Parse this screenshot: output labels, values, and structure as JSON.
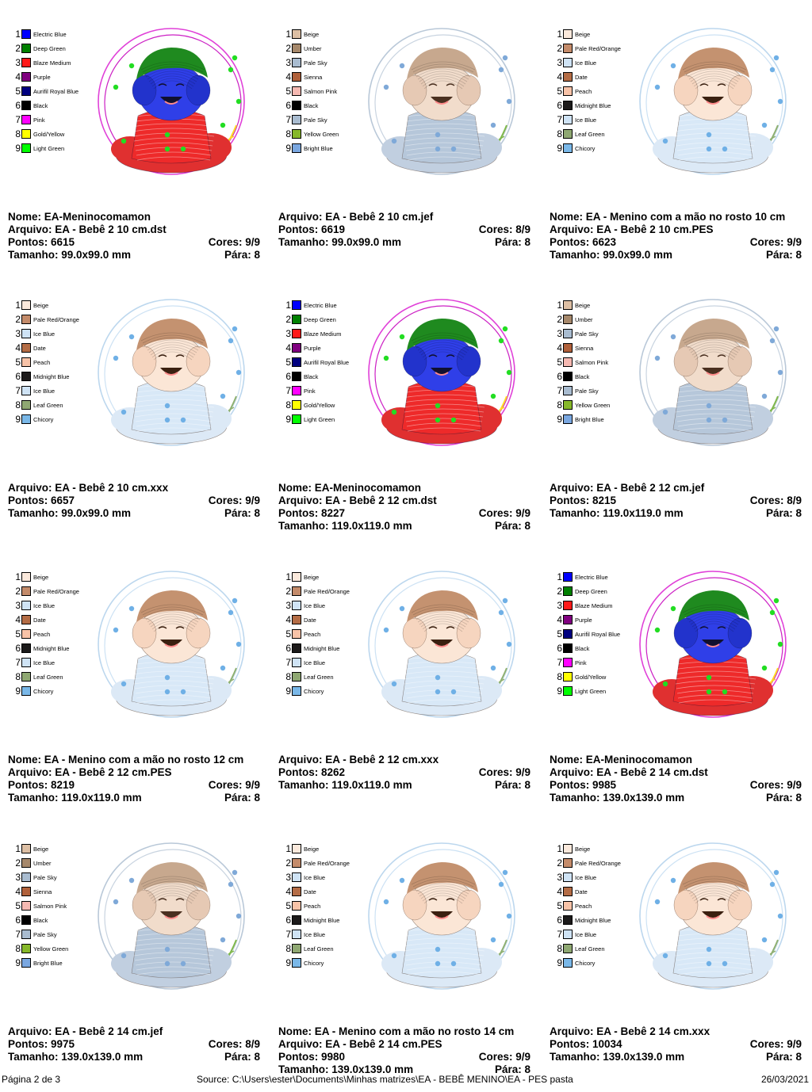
{
  "palettes": {
    "vivid": [
      {
        "name": "Electric Blue",
        "color": "#0000ff"
      },
      {
        "name": "Deep Green",
        "color": "#008000"
      },
      {
        "name": "Blaze Medium",
        "color": "#ff1a1a"
      },
      {
        "name": "Purple",
        "color": "#800080"
      },
      {
        "name": "Aurifil Royal Blue",
        "color": "#000080"
      },
      {
        "name": "Black",
        "color": "#000000"
      },
      {
        "name": "Pink",
        "color": "#ff00ff"
      },
      {
        "name": "Gold/Yellow",
        "color": "#ffff00"
      },
      {
        "name": "Light Green",
        "color": "#00ff00"
      }
    ],
    "jef": [
      {
        "name": "Beige",
        "color": "#ddbfa4"
      },
      {
        "name": "Umber",
        "color": "#a6886b"
      },
      {
        "name": "Pale Sky",
        "color": "#a9bcd0"
      },
      {
        "name": "Sienna",
        "color": "#b0603a"
      },
      {
        "name": "Salmon Pink",
        "color": "#f6b9b2"
      },
      {
        "name": "Black",
        "color": "#000000"
      },
      {
        "name": "Pale Sky",
        "color": "#a9bcd0"
      },
      {
        "name": "Yellow Green",
        "color": "#86b82a"
      },
      {
        "name": "Bright Blue",
        "color": "#7aa7e0"
      }
    ],
    "soft": [
      {
        "name": "Beige",
        "color": "#fbe9dc"
      },
      {
        "name": "Pale Red/Orange",
        "color": "#c48b6a"
      },
      {
        "name": "Ice Blue",
        "color": "#cfe3f5"
      },
      {
        "name": "Date",
        "color": "#b46c45"
      },
      {
        "name": "Peach",
        "color": "#f8c3a8"
      },
      {
        "name": "Midnight Blue",
        "color": "#1c1a1a"
      },
      {
        "name": "Ice Blue",
        "color": "#cfe3f5"
      },
      {
        "name": "Leaf Green",
        "color": "#8fa872"
      },
      {
        "name": "Chicory",
        "color": "#7ab8e8"
      }
    ]
  },
  "cards": [
    {
      "style": "vivid",
      "lines": [
        {
          "label": "Nome: EA-Meninocomamon"
        },
        {
          "label": "Arquivo: EA - Bebê 2 10 cm.dst"
        },
        {
          "label": "Pontos: 6615",
          "right": "Cores: 9/9"
        },
        {
          "label": "Tamanho: 99.0x99.0 mm",
          "right": "Pára: 8"
        }
      ]
    },
    {
      "style": "jef",
      "lines": [
        {
          "label": "Arquivo: EA - Bebê 2 10 cm.jef"
        },
        {
          "label": "Pontos: 6619",
          "right": "Cores: 8/9"
        },
        {
          "label": "Tamanho: 99.0x99.0 mm",
          "right": "Pára: 8"
        }
      ]
    },
    {
      "style": "soft",
      "lines": [
        {
          "label": "Nome: EA - Menino com a mão no rosto 10 cm"
        },
        {
          "label": "Arquivo: EA - Bebê 2 10 cm.PES"
        },
        {
          "label": "Pontos: 6623",
          "right": "Cores: 9/9"
        },
        {
          "label": "Tamanho: 99.0x99.0 mm",
          "right": "Pára: 8"
        }
      ]
    },
    {
      "style": "soft",
      "lines": [
        {
          "label": "Arquivo: EA - Bebê 2 10 cm.xxx"
        },
        {
          "label": "Pontos: 6657",
          "right": "Cores: 9/9"
        },
        {
          "label": "Tamanho: 99.0x99.0 mm",
          "right": "Pára: 8"
        }
      ]
    },
    {
      "style": "vivid",
      "lines": [
        {
          "label": "Nome: EA-Meninocomamon"
        },
        {
          "label": "Arquivo: EA - Bebê 2 12 cm.dst"
        },
        {
          "label": "Pontos: 8227",
          "right": "Cores: 9/9"
        },
        {
          "label": "Tamanho: 119.0x119.0 mm",
          "right": "Pára: 8"
        }
      ]
    },
    {
      "style": "jef",
      "lines": [
        {
          "label": "Arquivo: EA - Bebê 2 12 cm.jef"
        },
        {
          "label": "Pontos: 8215",
          "right": "Cores: 8/9"
        },
        {
          "label": "Tamanho: 119.0x119.0 mm",
          "right": "Pára: 8"
        }
      ]
    },
    {
      "style": "soft",
      "lines": [
        {
          "label": "Nome: EA - Menino com a mão no rosto 12 cm"
        },
        {
          "label": "Arquivo: EA - Bebê 2 12 cm.PES"
        },
        {
          "label": "Pontos: 8219",
          "right": "Cores: 9/9"
        },
        {
          "label": "Tamanho: 119.0x119.0 mm",
          "right": "Pára: 8"
        }
      ]
    },
    {
      "style": "soft",
      "lines": [
        {
          "label": "Arquivo: EA - Bebê 2 12 cm.xxx"
        },
        {
          "label": "Pontos: 8262",
          "right": "Cores: 9/9"
        },
        {
          "label": "Tamanho: 119.0x119.0 mm",
          "right": "Pára: 8"
        }
      ]
    },
    {
      "style": "vivid",
      "lines": [
        {
          "label": "Nome: EA-Meninocomamon"
        },
        {
          "label": "Arquivo: EA - Bebê 2 14 cm.dst"
        },
        {
          "label": "Pontos: 9985",
          "right": "Cores: 9/9"
        },
        {
          "label": "Tamanho: 139.0x139.0 mm",
          "right": "Pára: 8"
        }
      ]
    },
    {
      "style": "jef",
      "lines": [
        {
          "label": "Arquivo: EA - Bebê 2 14 cm.jef"
        },
        {
          "label": "Pontos: 9975",
          "right": "Cores: 8/9"
        },
        {
          "label": "Tamanho: 139.0x139.0 mm",
          "right": "Pára: 8"
        }
      ]
    },
    {
      "style": "soft",
      "lines": [
        {
          "label": "Nome: EA - Menino com a mão no rosto 14 cm"
        },
        {
          "label": "Arquivo: EA - Bebê 2 14 cm.PES"
        },
        {
          "label": "Pontos: 9980",
          "right": "Cores: 9/9"
        },
        {
          "label": "Tamanho: 139.0x139.0 mm",
          "right": "Pára: 8"
        }
      ]
    },
    {
      "style": "soft",
      "lines": [
        {
          "label": "Arquivo: EA - Bebê 2 14 cm.xxx"
        },
        {
          "label": "Pontos: 10034",
          "right": "Cores: 9/9"
        },
        {
          "label": "Tamanho: 139.0x139.0 mm",
          "right": "Pára: 8"
        }
      ]
    }
  ],
  "footer": {
    "page": "Página 2 de 3",
    "source": "Source: C:\\Users\\ester\\Documents\\Minhas matrizes\\EA - BEBÊ MENINO\\EA - PES pasta",
    "date": "26/03/2021"
  }
}
